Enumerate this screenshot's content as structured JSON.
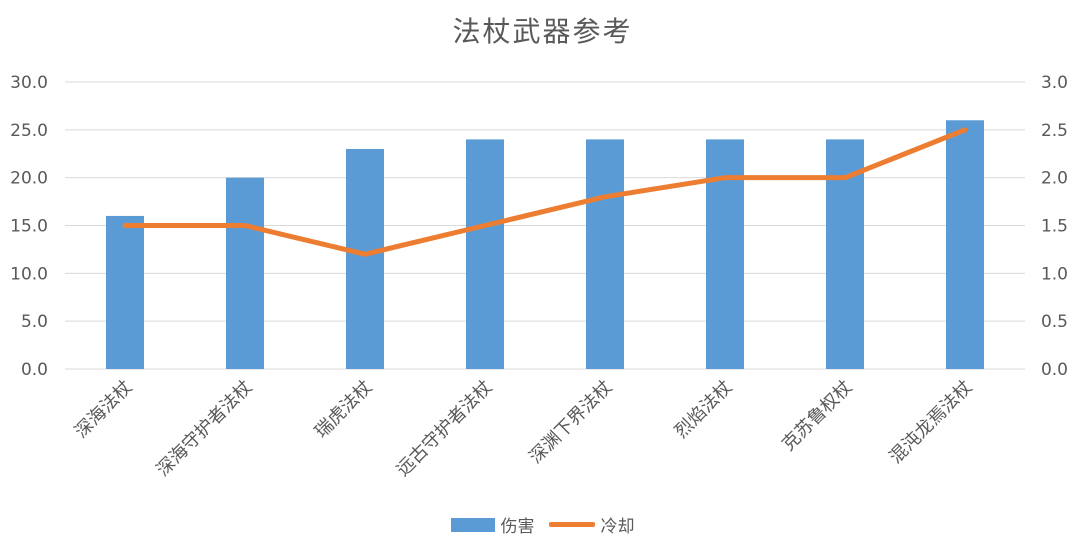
{
  "colors": {
    "bar": "#5b9bd5",
    "line": "#ed7d31",
    "grid": "#d9d9d9",
    "text": "#595959"
  },
  "chart_data": {
    "type": "bar",
    "title": "法杖武器参考",
    "categories": [
      "深海法杖",
      "深海守护者法杖",
      "瑞虎法杖",
      "远古守护者法杖",
      "深渊下界法杖",
      "烈焰法杖",
      "克苏鲁权杖",
      "混沌龙焉法杖"
    ],
    "series": [
      {
        "name": "伤害",
        "type": "bar",
        "axis": "left",
        "values": [
          16,
          20,
          23,
          24,
          24,
          24,
          24,
          26
        ]
      },
      {
        "name": "冷却",
        "type": "line",
        "axis": "right",
        "values": [
          1.5,
          1.5,
          1.2,
          1.5,
          1.8,
          2.0,
          2.0,
          2.5
        ]
      }
    ],
    "y_left": {
      "min": 0,
      "max": 30,
      "ticks": [
        "0.0",
        "5.0",
        "10.0",
        "15.0",
        "20.0",
        "25.0",
        "30.0"
      ]
    },
    "y_right": {
      "min": 0,
      "max": 3,
      "ticks": [
        "0.0",
        "0.5",
        "1.0",
        "1.5",
        "2.0",
        "2.5",
        "3.0"
      ]
    },
    "grid": true,
    "legend": "bottom"
  },
  "legend": {
    "bar_label": "伤害",
    "line_label": "冷却"
  }
}
